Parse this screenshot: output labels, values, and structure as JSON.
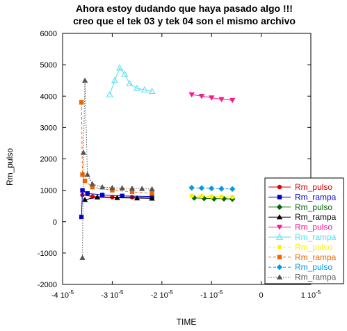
{
  "chart_data": {
    "type": "scatter",
    "title": [
      "Ahora estoy dudando que haya pasado algo !!!",
      "creo que el tek 03 y tek 04 son el mismo archivo"
    ],
    "xlabel": "TIME",
    "ylabel": "Rm_pulso",
    "xlim": [
      -4e-05,
      1e-05
    ],
    "ylim": [
      -2000,
      6000
    ],
    "xticks": [
      {
        "value": -4e-05,
        "mant": "-4 10",
        "exp": "-5"
      },
      {
        "value": -3e-05,
        "mant": "-3 10",
        "exp": "-5"
      },
      {
        "value": -2e-05,
        "mant": "-2 10",
        "exp": "-5"
      },
      {
        "value": -1e-05,
        "mant": "-1 10",
        "exp": "-5"
      },
      {
        "value": 0,
        "mant": "0",
        "exp": ""
      },
      {
        "value": 1e-05,
        "mant": "1 10",
        "exp": "-5"
      }
    ],
    "yticks": [
      -2000,
      -1000,
      0,
      1000,
      2000,
      3000,
      4000,
      5000,
      6000
    ],
    "grid": false,
    "legend_position": "bottom-right",
    "series": [
      {
        "name": "Rm_pulso",
        "color": "#dd0000",
        "marker": "circle",
        "line": "solid",
        "points": [
          [
            -3.6e-05,
            850
          ],
          [
            -3.4e-05,
            800
          ],
          [
            -3e-05,
            780
          ],
          [
            -2.6e-05,
            780
          ],
          [
            -2.2e-05,
            760
          ]
        ]
      },
      {
        "name": "Rm_rampa",
        "color": "#0000cc",
        "marker": "square",
        "line": "solid",
        "points": [
          [
            -3.62e-05,
            150
          ],
          [
            -3.6e-05,
            1000
          ],
          [
            -3.5e-05,
            900
          ],
          [
            -3.2e-05,
            850
          ],
          [
            -2.8e-05,
            820
          ],
          [
            -2.2e-05,
            800
          ]
        ]
      },
      {
        "name": "Rm_pulso",
        "color": "#006600",
        "marker": "diamond",
        "line": "solid",
        "points": [
          [
            -1.35e-05,
            760
          ],
          [
            -1.15e-05,
            740
          ],
          [
            -9.5e-06,
            730
          ],
          [
            -7.5e-06,
            730
          ],
          [
            -5.8e-06,
            720
          ]
        ]
      },
      {
        "name": "Rm_rampa",
        "color": "#000000",
        "marker": "triangle",
        "line": "solid",
        "points": [
          [
            -3.55e-05,
            700
          ],
          [
            -3.3e-05,
            780
          ],
          [
            -2.9e-05,
            760
          ],
          [
            -2.5e-05,
            750
          ],
          [
            -2.2e-05,
            740
          ]
        ]
      },
      {
        "name": "Rm_pulso",
        "color": "#ff1493",
        "marker": "triangle-down",
        "line": "solid",
        "points": [
          [
            -1.4e-05,
            4050
          ],
          [
            -1.2e-05,
            4000
          ],
          [
            -1e-05,
            3950
          ],
          [
            -8e-06,
            3900
          ],
          [
            -5.8e-06,
            3870
          ]
        ]
      },
      {
        "name": "Rm_rampa",
        "color": "#55ddee",
        "marker": "triangle-open",
        "line": "solid",
        "points": [
          [
            -3.05e-05,
            4050
          ],
          [
            -2.95e-05,
            4500
          ],
          [
            -2.85e-05,
            4900
          ],
          [
            -2.75e-05,
            4700
          ],
          [
            -2.65e-05,
            4400
          ],
          [
            -2.5e-05,
            4250
          ],
          [
            -2.35e-05,
            4200
          ],
          [
            -2.2e-05,
            4150
          ]
        ]
      },
      {
        "name": "Rm_pulso",
        "color": "#ffee00",
        "marker": "circle",
        "line": "dashed",
        "points": [
          [
            -1.4e-05,
            820
          ],
          [
            -1.2e-05,
            810
          ],
          [
            -1e-05,
            800
          ],
          [
            -8e-06,
            800
          ],
          [
            -5.8e-06,
            790
          ]
        ]
      },
      {
        "name": "Rm_rampa",
        "color": "#ee6600",
        "marker": "square",
        "line": "dashed",
        "points": [
          [
            -3.62e-05,
            3800
          ],
          [
            -3.6e-05,
            1500
          ],
          [
            -3.55e-05,
            1300
          ],
          [
            -3.4e-05,
            1100
          ],
          [
            -3e-05,
            1000
          ],
          [
            -2.6e-05,
            950
          ],
          [
            -2.2e-05,
            900
          ]
        ]
      },
      {
        "name": "Rm_pulso",
        "color": "#0099ee",
        "marker": "diamond",
        "line": "dashed",
        "points": [
          [
            -1.4e-05,
            1080
          ],
          [
            -1.2e-05,
            1070
          ],
          [
            -1e-05,
            1060
          ],
          [
            -8e-06,
            1050
          ],
          [
            -5.8e-06,
            1040
          ]
        ]
      },
      {
        "name": "Rm_rampa",
        "color": "#555555",
        "marker": "triangle",
        "line": "dotted",
        "points": [
          [
            -3.6e-05,
            -1150
          ],
          [
            -3.58e-05,
            2200
          ],
          [
            -3.55e-05,
            4500
          ],
          [
            -3.5e-05,
            1500
          ],
          [
            -3.4e-05,
            1200
          ],
          [
            -3.2e-05,
            1100
          ],
          [
            -3e-05,
            1080
          ],
          [
            -2.8e-05,
            1070
          ],
          [
            -2.6e-05,
            1060
          ],
          [
            -2.4e-05,
            1050
          ],
          [
            -2.2e-05,
            1040
          ]
        ]
      }
    ]
  }
}
